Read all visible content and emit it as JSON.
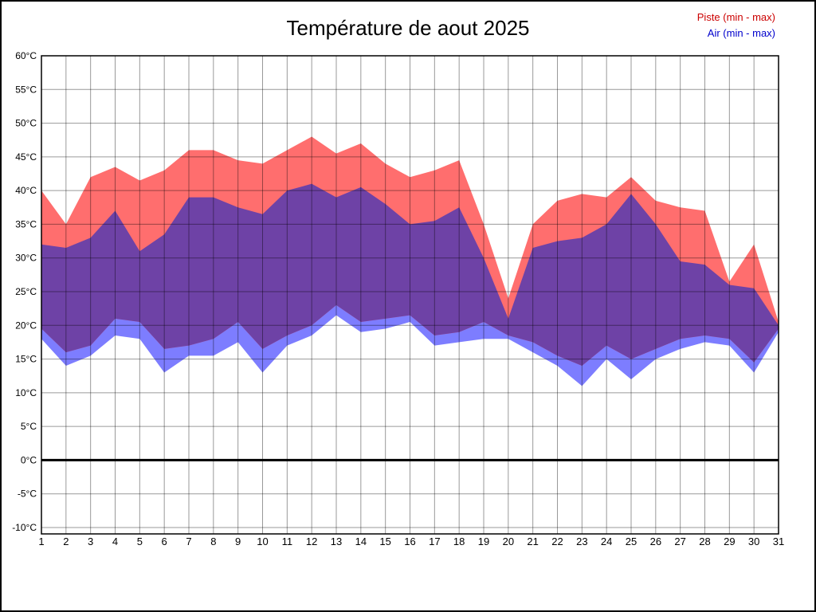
{
  "title": "Température de aout 2025",
  "legend": {
    "piste": "Piste (min - max)",
    "air": "Air (min - max)",
    "piste_color": "#cc0000",
    "air_color": "#0000cc"
  },
  "chart_data": {
    "type": "area",
    "title": "Température de aout 2025",
    "x": [
      1,
      2,
      3,
      4,
      5,
      6,
      7,
      8,
      9,
      10,
      11,
      12,
      13,
      14,
      15,
      16,
      17,
      18,
      19,
      20,
      21,
      22,
      23,
      24,
      25,
      26,
      27,
      28,
      29,
      30,
      31
    ],
    "xlabel": "",
    "ylabel": "",
    "ylim": [
      -10,
      60
    ],
    "y_ticks": [
      60,
      55,
      50,
      45,
      40,
      35,
      30,
      25,
      20,
      15,
      10,
      5,
      0,
      -5,
      -10
    ],
    "y_tick_suffix": "°C",
    "grid": true,
    "legend_position": "top-right",
    "series": [
      {
        "name": "Piste max",
        "values": [
          40,
          35,
          42,
          43.5,
          41.5,
          43,
          46,
          46,
          44.5,
          44,
          46,
          48,
          45.5,
          47,
          44,
          42,
          43,
          44.5,
          35,
          24,
          35,
          38.5,
          39.5,
          39,
          42,
          38.5,
          37.5,
          37,
          26.5,
          32,
          20.5
        ]
      },
      {
        "name": "Piste min",
        "values": [
          19.5,
          16,
          17,
          21,
          20.5,
          16.5,
          17,
          18,
          20.5,
          16.5,
          18.5,
          20,
          23,
          20.5,
          21,
          21.5,
          18.5,
          19,
          20.5,
          18.5,
          17.5,
          15.5,
          14,
          17,
          15,
          16.5,
          18,
          18.5,
          18,
          14.5,
          19.5
        ]
      },
      {
        "name": "Air max",
        "values": [
          32,
          31.5,
          33,
          37,
          31,
          33.5,
          39,
          39,
          37.5,
          36.5,
          40,
          41,
          39,
          40.5,
          38,
          35,
          35.5,
          37.5,
          30,
          21,
          31.5,
          32.5,
          33,
          35,
          39.5,
          35,
          29.5,
          29,
          26,
          25.5,
          20
        ]
      },
      {
        "name": "Air min",
        "values": [
          18,
          14,
          15.5,
          18.5,
          18,
          13,
          15.5,
          15.5,
          17.5,
          13,
          17,
          18.5,
          21.5,
          19,
          19.5,
          20.5,
          17,
          17.5,
          18,
          18,
          16,
          14,
          11,
          15,
          12,
          15,
          16.5,
          17.5,
          17,
          13,
          19
        ]
      }
    ],
    "colors": {
      "piste_band": "#ff6e6e",
      "air_band": "#7d7dff",
      "overlap_band": "#6e42a6",
      "grid": "#000000",
      "grid_opacity": "0.4",
      "zero_line": "#000000",
      "frame": "#000000"
    }
  }
}
